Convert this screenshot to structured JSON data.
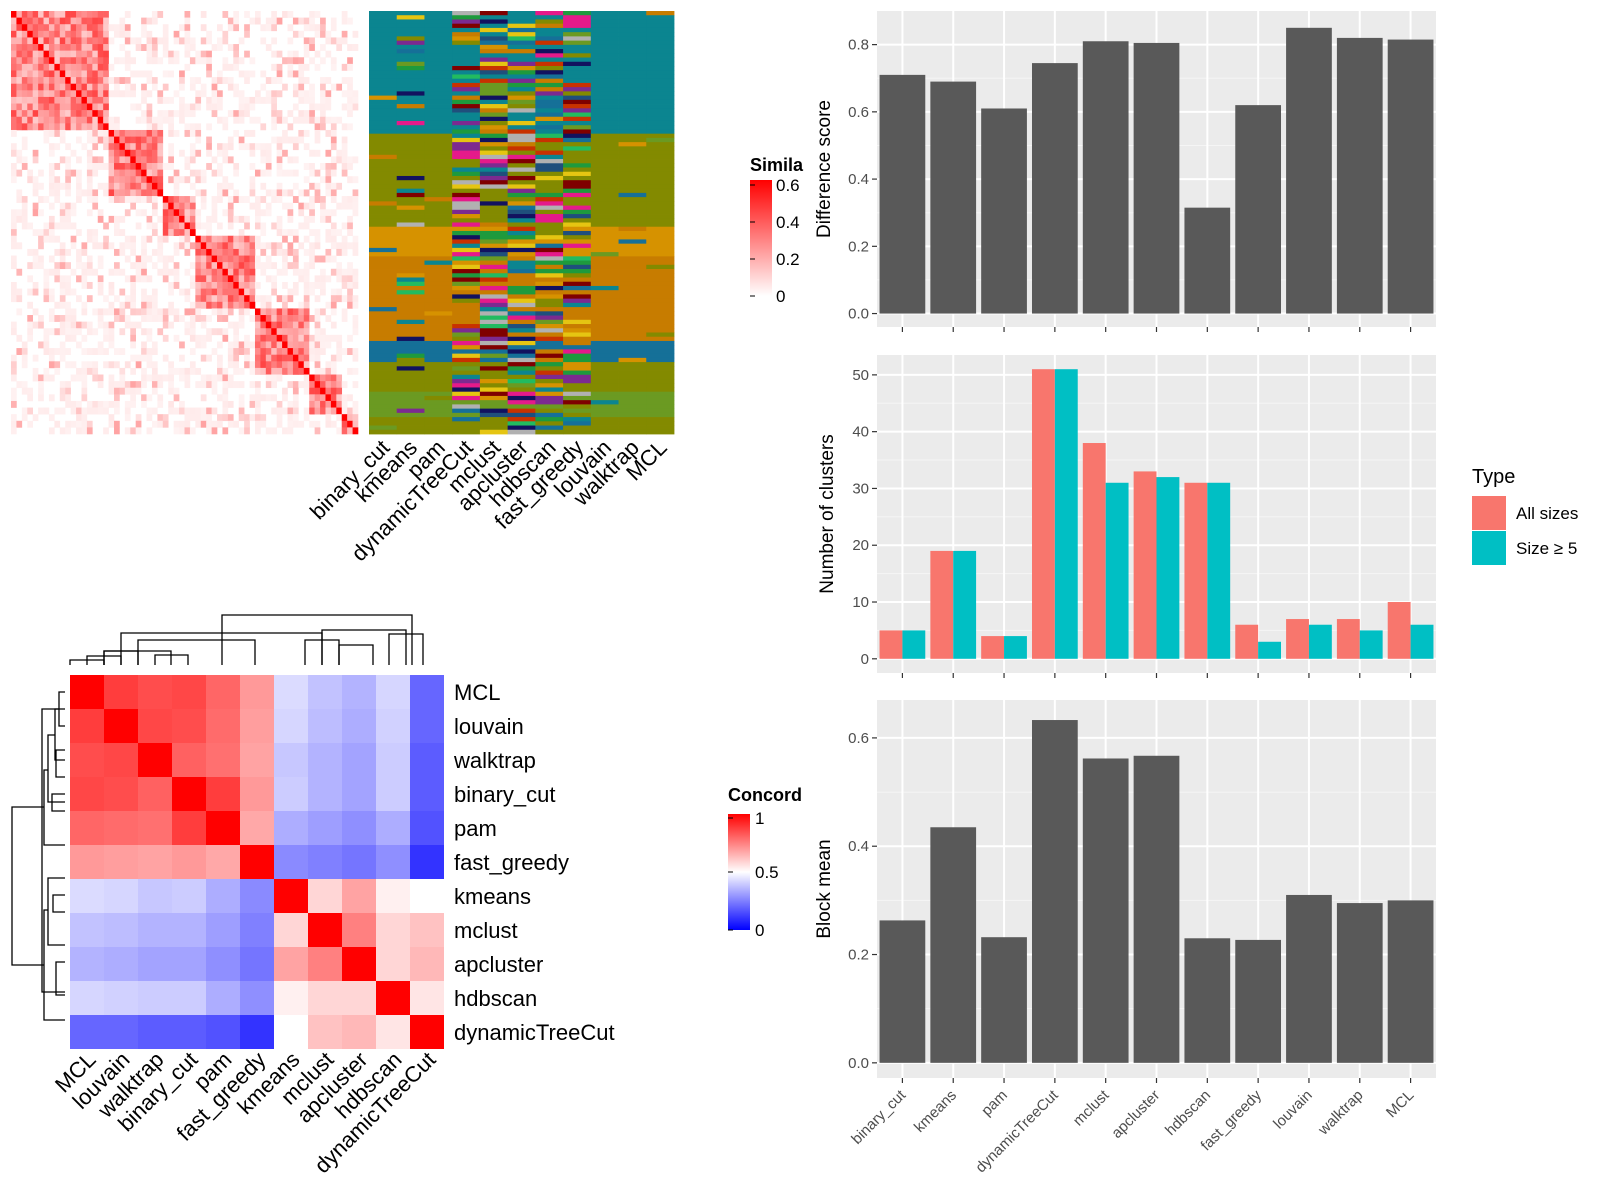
{
  "chart_data": [
    {
      "type": "heatmap",
      "panel": "similarity",
      "legend_title": "Simila",
      "legend_ticks": [
        "0",
        "0.2",
        "0.4",
        "0.6"
      ],
      "colors": {
        "high": "#ff0000",
        "low": "#ffffff"
      }
    },
    {
      "type": "heatmap",
      "panel": "cluster-assignments",
      "columns": [
        "binary_cut",
        "kmeans",
        "pam",
        "dynamicTreeCut",
        "mclust",
        "apcluster",
        "hdbscan",
        "fast_greedy",
        "louvain",
        "walktrap",
        "MCL"
      ],
      "palette": [
        "#0b8590",
        "#838a00",
        "#d69200",
        "#c77c00",
        "#157098",
        "#6b9a22",
        "#1f4f7c",
        "#7c2a90",
        "#e51a8a",
        "#7f0000",
        "#1e9a3d",
        "#e5c512",
        "#12125f",
        "#c83200",
        "#22bb60",
        "#b1b1b1"
      ]
    },
    {
      "type": "heatmap",
      "panel": "concordance",
      "legend_title": "Concord",
      "legend_ticks": [
        "0",
        "0.5",
        "1"
      ],
      "rows": [
        "MCL",
        "louvain",
        "walktrap",
        "binary_cut",
        "pam",
        "fast_greedy",
        "kmeans",
        "mclust",
        "apcluster",
        "hdbscan",
        "dynamicTreeCut"
      ],
      "cols": [
        "MCL",
        "louvain",
        "walktrap",
        "binary_cut",
        "pam",
        "fast_greedy",
        "kmeans",
        "mclust",
        "apcluster",
        "hdbscan",
        "dynamicTreeCut"
      ],
      "values": [
        [
          1.0,
          0.88,
          0.85,
          0.86,
          0.8,
          0.7,
          0.43,
          0.38,
          0.35,
          0.42,
          0.2
        ],
        [
          0.88,
          1.0,
          0.86,
          0.85,
          0.79,
          0.69,
          0.42,
          0.37,
          0.34,
          0.41,
          0.2
        ],
        [
          0.85,
          0.86,
          1.0,
          0.81,
          0.78,
          0.68,
          0.39,
          0.35,
          0.32,
          0.4,
          0.18
        ],
        [
          0.86,
          0.85,
          0.81,
          1.0,
          0.88,
          0.7,
          0.4,
          0.35,
          0.32,
          0.4,
          0.18
        ],
        [
          0.8,
          0.79,
          0.78,
          0.88,
          1.0,
          0.67,
          0.34,
          0.31,
          0.28,
          0.34,
          0.16
        ],
        [
          0.7,
          0.69,
          0.68,
          0.7,
          0.67,
          1.0,
          0.27,
          0.25,
          0.23,
          0.28,
          0.1
        ],
        [
          0.43,
          0.42,
          0.39,
          0.4,
          0.34,
          0.27,
          1.0,
          0.58,
          0.68,
          0.53,
          0.5
        ],
        [
          0.38,
          0.37,
          0.35,
          0.35,
          0.31,
          0.25,
          0.58,
          1.0,
          0.75,
          0.58,
          0.62
        ],
        [
          0.35,
          0.34,
          0.32,
          0.32,
          0.28,
          0.23,
          0.68,
          0.75,
          1.0,
          0.58,
          0.64
        ],
        [
          0.42,
          0.41,
          0.4,
          0.4,
          0.34,
          0.28,
          0.53,
          0.58,
          0.58,
          1.0,
          0.55
        ],
        [
          0.2,
          0.2,
          0.18,
          0.18,
          0.16,
          0.1,
          0.5,
          0.62,
          0.64,
          0.55,
          1.0
        ]
      ],
      "colors": {
        "high": "#ff0000",
        "mid": "#ffffff",
        "low": "#0000ff"
      }
    },
    {
      "type": "bar",
      "panel": "difference-score",
      "categories": [
        "binary_cut",
        "kmeans",
        "pam",
        "dynamicTreeCut",
        "mclust",
        "apcluster",
        "hdbscan",
        "fast_greedy",
        "louvain",
        "walktrap",
        "MCL"
      ],
      "values": [
        0.71,
        0.69,
        0.61,
        0.745,
        0.81,
        0.805,
        0.315,
        0.62,
        0.85,
        0.82,
        0.815
      ],
      "ylabel": "Difference score",
      "ylim": [
        -0.04,
        0.9
      ],
      "yticks": [
        0.0,
        0.2,
        0.4,
        0.6,
        0.8
      ],
      "ytick_labels": [
        "0.0",
        "0.2",
        "0.4",
        "0.6",
        "0.8"
      ],
      "grid": true,
      "bar_color": "#595959"
    },
    {
      "type": "bar",
      "panel": "number-of-clusters",
      "categories": [
        "binary_cut",
        "kmeans",
        "pam",
        "dynamicTreeCut",
        "mclust",
        "apcluster",
        "hdbscan",
        "fast_greedy",
        "louvain",
        "walktrap",
        "MCL"
      ],
      "series": [
        {
          "name": "All sizes",
          "color": "#f8766d",
          "values": [
            5,
            19,
            4,
            51,
            38,
            33,
            31,
            6,
            7,
            7,
            10
          ]
        },
        {
          "name": "Size ≥ 5",
          "color": "#00bfc4",
          "values": [
            5,
            19,
            4,
            51,
            31,
            32,
            31,
            3,
            6,
            5,
            6
          ]
        }
      ],
      "ylabel": "Number of clusters",
      "ylim": [
        -2.5,
        53.5
      ],
      "yticks": [
        0,
        10,
        20,
        30,
        40,
        50
      ],
      "ytick_labels": [
        "0",
        "10",
        "20",
        "30",
        "40",
        "50"
      ],
      "legend_title": "Type",
      "legend_position": "right",
      "grid": true
    },
    {
      "type": "bar",
      "panel": "block-mean",
      "categories": [
        "binary_cut",
        "kmeans",
        "pam",
        "dynamicTreeCut",
        "mclust",
        "apcluster",
        "hdbscan",
        "fast_greedy",
        "louvain",
        "walktrap",
        "MCL"
      ],
      "values": [
        0.263,
        0.435,
        0.232,
        0.633,
        0.562,
        0.567,
        0.23,
        0.227,
        0.31,
        0.295,
        0.3
      ],
      "ylabel": "Block mean",
      "ylim": [
        -0.028,
        0.67
      ],
      "yticks": [
        0.0,
        0.2,
        0.4,
        0.6
      ],
      "ytick_labels": [
        "0.0",
        "0.2",
        "0.4",
        "0.6"
      ],
      "grid": true,
      "bar_color": "#595959"
    }
  ]
}
